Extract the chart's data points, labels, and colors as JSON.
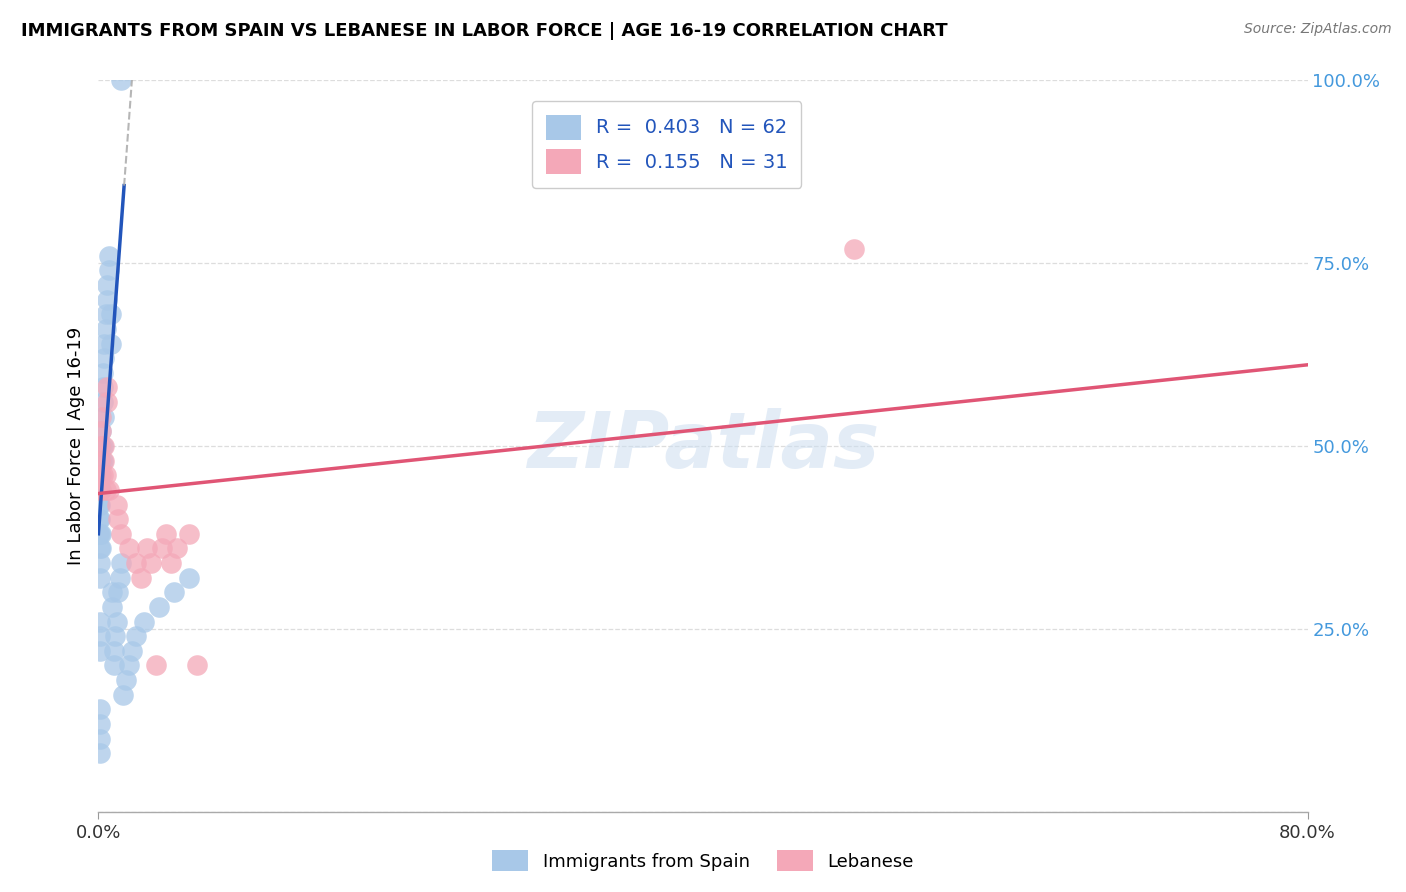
{
  "title": "IMMIGRANTS FROM SPAIN VS LEBANESE IN LABOR FORCE | AGE 16-19 CORRELATION CHART",
  "source": "Source: ZipAtlas.com",
  "ylabel": "In Labor Force | Age 16-19",
  "spain_R": 0.403,
  "spain_N": 62,
  "lebanon_R": 0.155,
  "lebanon_N": 31,
  "spain_color": "#a8c8e8",
  "lebanon_color": "#f4a8b8",
  "spain_line_color": "#2255bb",
  "lebanon_line_color": "#e05575",
  "spain_line_dash_color": "#aaaaaa",
  "legend_label_spain": "Immigrants from Spain",
  "legend_label_lebanon": "Lebanese",
  "watermark": "ZIPatlas",
  "ytick_color": "#4499dd",
  "xtick_color": "#333333",
  "grid_color": "#dddddd",
  "xlim": [
    0.0,
    0.8
  ],
  "ylim": [
    0.0,
    1.0
  ],
  "xticks": [
    0.0,
    0.8
  ],
  "yticks": [
    0.0,
    0.25,
    0.5,
    0.75,
    1.0
  ],
  "xtick_labels": [
    "0.0%",
    "80.0%"
  ],
  "ytick_labels": [
    "",
    "25.0%",
    "50.0%",
    "75.0%",
    "100.0%"
  ],
  "spain_x": [
    0.0005,
    0.0005,
    0.0005,
    0.0005,
    0.0005,
    0.001,
    0.001,
    0.001,
    0.001,
    0.001,
    0.001,
    0.001,
    0.001,
    0.001,
    0.001,
    0.001,
    0.001,
    0.001,
    0.001,
    0.001,
    0.002,
    0.002,
    0.002,
    0.002,
    0.002,
    0.002,
    0.002,
    0.003,
    0.003,
    0.003,
    0.003,
    0.003,
    0.004,
    0.004,
    0.004,
    0.005,
    0.005,
    0.006,
    0.006,
    0.007,
    0.007,
    0.008,
    0.008,
    0.009,
    0.009,
    0.01,
    0.01,
    0.011,
    0.012,
    0.013,
    0.014,
    0.015,
    0.016,
    0.018,
    0.02,
    0.022,
    0.025,
    0.03,
    0.04,
    0.05,
    0.06,
    0.015
  ],
  "spain_y": [
    0.38,
    0.4,
    0.42,
    0.44,
    0.46,
    0.36,
    0.38,
    0.4,
    0.42,
    0.44,
    0.32,
    0.34,
    0.22,
    0.24,
    0.26,
    0.12,
    0.14,
    0.08,
    0.1,
    0.46,
    0.44,
    0.46,
    0.48,
    0.36,
    0.38,
    0.5,
    0.52,
    0.56,
    0.58,
    0.6,
    0.48,
    0.5,
    0.54,
    0.62,
    0.64,
    0.66,
    0.68,
    0.7,
    0.72,
    0.74,
    0.76,
    0.64,
    0.68,
    0.28,
    0.3,
    0.2,
    0.22,
    0.24,
    0.26,
    0.3,
    0.32,
    0.34,
    0.16,
    0.18,
    0.2,
    0.22,
    0.24,
    0.26,
    0.28,
    0.3,
    0.32,
    1.0
  ],
  "spain_line_x0": 0.0,
  "spain_line_x1": 0.017,
  "spain_line_dash_x0": 0.017,
  "spain_line_dash_x1": 0.042,
  "spain_line_slope": 28.0,
  "spain_line_intercept": 0.38,
  "lebanon_line_x0": 0.0,
  "lebanon_line_x1": 0.8,
  "lebanon_line_slope": 0.22,
  "lebanon_line_intercept": 0.435,
  "lebanon_x": [
    0.001,
    0.001,
    0.001,
    0.001,
    0.002,
    0.002,
    0.002,
    0.003,
    0.004,
    0.004,
    0.005,
    0.005,
    0.006,
    0.006,
    0.007,
    0.012,
    0.013,
    0.015,
    0.02,
    0.025,
    0.028,
    0.032,
    0.035,
    0.038,
    0.042,
    0.045,
    0.048,
    0.052,
    0.06,
    0.065,
    0.5
  ],
  "lebanon_y": [
    0.44,
    0.46,
    0.48,
    0.5,
    0.52,
    0.54,
    0.44,
    0.46,
    0.48,
    0.5,
    0.44,
    0.46,
    0.56,
    0.58,
    0.44,
    0.42,
    0.4,
    0.38,
    0.36,
    0.34,
    0.32,
    0.36,
    0.34,
    0.2,
    0.36,
    0.38,
    0.34,
    0.36,
    0.38,
    0.2,
    0.77
  ]
}
